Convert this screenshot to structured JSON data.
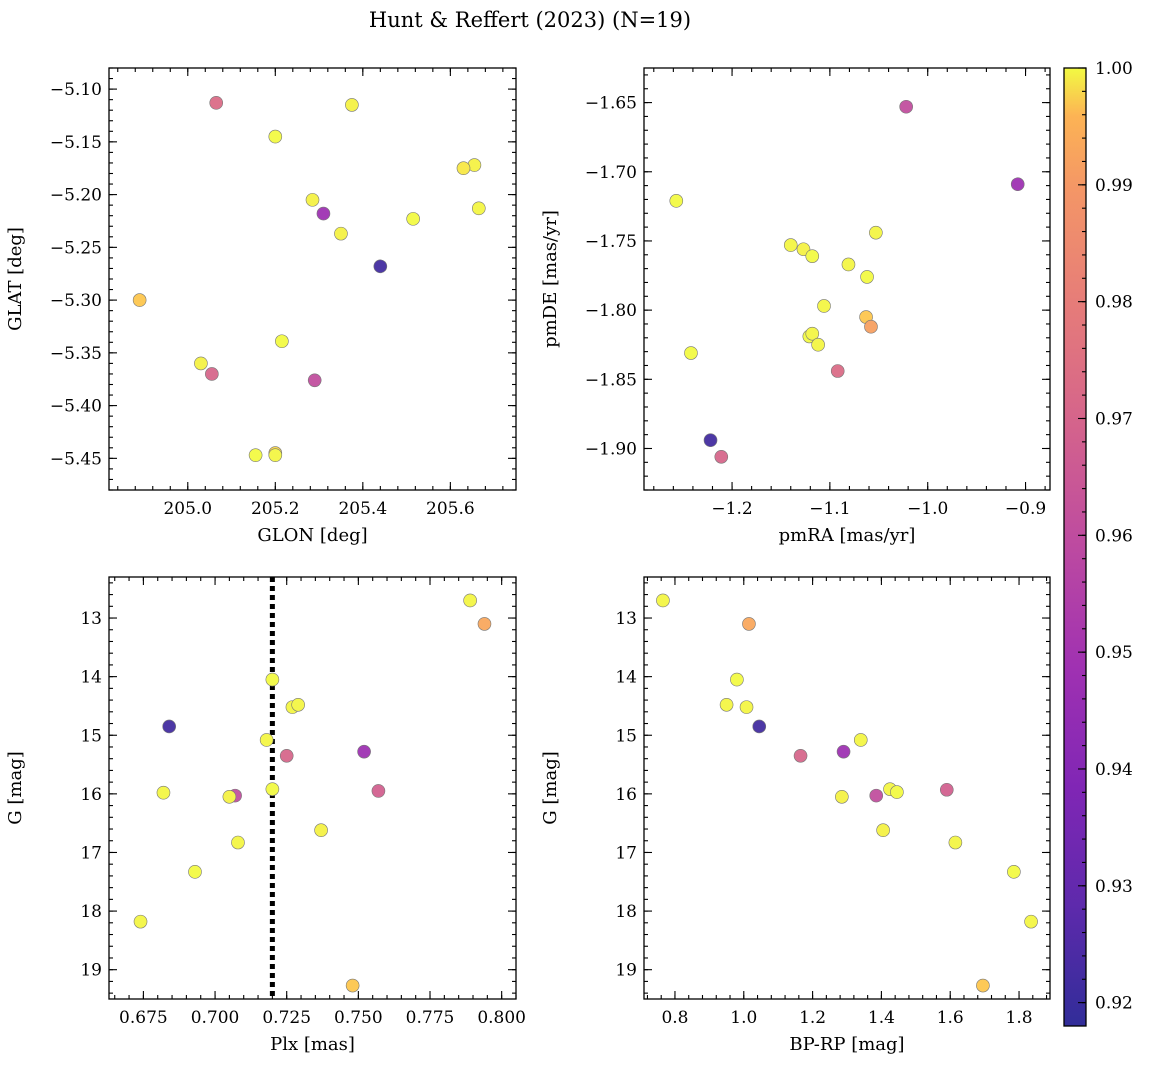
{
  "figure_title": "Hunt & Reffert (2023) (N=19)",
  "colorbar": {
    "min": 0.918,
    "max": 1.0,
    "ticks": [
      0.92,
      0.93,
      0.94,
      0.95,
      0.96,
      0.97,
      0.98,
      0.99,
      1.0
    ],
    "tick_labels": [
      "0.92",
      "0.93",
      "0.94",
      "0.95",
      "0.96",
      "0.97",
      "0.98",
      "0.99",
      "1.00"
    ],
    "colormap": "plasma"
  },
  "chart_data": [
    {
      "type": "scatter",
      "name": "glon-glat",
      "xlabel": "GLON [deg]",
      "ylabel": "GLAT [deg]",
      "xlim": [
        204.82,
        205.75
      ],
      "ylim": [
        -5.48,
        -5.08
      ],
      "y_inverted": false,
      "xticks": [
        205.0,
        205.2,
        205.4,
        205.6
      ],
      "xtick_labels": [
        "205.0",
        "205.2",
        "205.4",
        "205.6"
      ],
      "yticks": [
        -5.1,
        -5.15,
        -5.2,
        -5.25,
        -5.3,
        -5.35,
        -5.4,
        -5.45
      ],
      "ytick_labels": [
        "−5.10",
        "−5.15",
        "−5.20",
        "−5.25",
        "−5.30",
        "−5.35",
        "−5.40",
        "−5.45"
      ],
      "x": [
        205.065,
        205.375,
        205.2,
        205.655,
        205.63,
        205.285,
        205.31,
        205.515,
        205.665,
        205.35,
        205.44,
        204.89,
        205.215,
        205.03,
        205.055,
        205.29,
        205.2,
        205.155,
        205.2
      ],
      "y": [
        -5.113,
        -5.115,
        -5.145,
        -5.172,
        -5.175,
        -5.205,
        -5.218,
        -5.223,
        -5.213,
        -5.237,
        -5.268,
        -5.3,
        -5.339,
        -5.36,
        -5.37,
        -5.376,
        -5.445,
        -5.447,
        -5.447
      ],
      "c": [
        0.962,
        0.998,
        1.0,
        0.998,
        0.996,
        0.998,
        0.942,
        1.0,
        0.999,
        0.998,
        0.921,
        0.988,
        1.0,
        0.998,
        0.96,
        0.952,
        0.992,
        1.0,
        0.999
      ]
    },
    {
      "type": "scatter",
      "name": "pmra-pmde",
      "xlabel": "pmRA [mas/yr]",
      "ylabel": "pmDE [mas/yr]",
      "xlim": [
        -1.29,
        -0.875
      ],
      "ylim": [
        -1.93,
        -1.625
      ],
      "y_inverted": false,
      "xticks": [
        -1.2,
        -1.1,
        -1.0,
        -0.9
      ],
      "xtick_labels": [
        "−1.2",
        "−1.1",
        "−1.0",
        "−0.9"
      ],
      "yticks": [
        -1.65,
        -1.7,
        -1.75,
        -1.8,
        -1.85,
        -1.9
      ],
      "ytick_labels": [
        "−1.65",
        "−1.70",
        "−1.75",
        "−1.80",
        "−1.85",
        "−1.90"
      ],
      "x": [
        -1.022,
        -0.908,
        -1.257,
        -1.14,
        -1.127,
        -1.118,
        -1.053,
        -1.081,
        -1.062,
        -1.106,
        -1.063,
        -1.058,
        -1.121,
        -1.118,
        -1.112,
        -1.242,
        -1.092,
        -1.222,
        -1.211
      ],
      "y": [
        -1.653,
        -1.709,
        -1.721,
        -1.753,
        -1.756,
        -1.761,
        -1.744,
        -1.767,
        -1.776,
        -1.797,
        -1.805,
        -1.812,
        -1.819,
        -1.817,
        -1.825,
        -1.831,
        -1.844,
        -1.894,
        -1.906
      ],
      "c": [
        0.952,
        0.942,
        1.0,
        0.999,
        0.998,
        1.0,
        0.999,
        0.999,
        1.0,
        0.999,
        0.988,
        0.978,
        1.0,
        0.999,
        0.999,
        1.0,
        0.962,
        0.921,
        0.96
      ]
    },
    {
      "type": "scatter",
      "name": "plx-g",
      "xlabel": "Plx [mas]",
      "ylabel": "G [mag]",
      "xlim": [
        0.663,
        0.805
      ],
      "ylim": [
        12.3,
        19.5
      ],
      "y_inverted": true,
      "xticks": [
        0.675,
        0.7,
        0.725,
        0.75,
        0.775,
        0.8
      ],
      "xtick_labels": [
        "0.675",
        "0.700",
        "0.725",
        "0.750",
        "0.775",
        "0.800"
      ],
      "yticks": [
        13,
        14,
        15,
        16,
        17,
        18,
        19
      ],
      "ytick_labels": [
        "13",
        "14",
        "15",
        "16",
        "17",
        "18",
        "19"
      ],
      "vline": 0.72,
      "x": [
        0.789,
        0.794,
        0.72,
        0.727,
        0.729,
        0.684,
        0.752,
        0.718,
        0.725,
        0.682,
        0.707,
        0.705,
        0.757,
        0.72,
        0.737,
        0.708,
        0.693,
        0.674,
        0.748
      ],
      "y": [
        12.7,
        13.1,
        14.05,
        14.52,
        14.48,
        14.85,
        15.28,
        15.08,
        15.35,
        15.98,
        16.03,
        16.05,
        15.95,
        15.92,
        16.62,
        16.83,
        17.33,
        18.18,
        19.27
      ],
      "c": [
        0.999,
        0.98,
        1.0,
        0.999,
        0.999,
        0.921,
        0.942,
        0.999,
        0.96,
        0.999,
        0.952,
        0.998,
        0.958,
        1.0,
        0.998,
        0.999,
        1.0,
        0.999,
        0.988
      ]
    },
    {
      "type": "scatter",
      "name": "bprp-g",
      "xlabel": "BP-RP [mag]",
      "ylabel": "G [mag]",
      "xlim": [
        0.71,
        1.89
      ],
      "ylim": [
        12.3,
        19.5
      ],
      "y_inverted": true,
      "xticks": [
        0.8,
        1.0,
        1.2,
        1.4,
        1.6,
        1.8
      ],
      "xtick_labels": [
        "0.8",
        "1.0",
        "1.2",
        "1.4",
        "1.6",
        "1.8"
      ],
      "yticks": [
        13,
        14,
        15,
        16,
        17,
        18,
        19
      ],
      "ytick_labels": [
        "13",
        "14",
        "15",
        "16",
        "17",
        "18",
        "19"
      ],
      "x": [
        0.765,
        1.015,
        0.98,
        0.95,
        1.008,
        1.045,
        1.29,
        1.34,
        1.165,
        1.59,
        1.385,
        1.285,
        1.425,
        1.445,
        1.405,
        1.615,
        1.785,
        1.835,
        1.695
      ],
      "y": [
        12.7,
        13.1,
        14.05,
        14.48,
        14.52,
        14.85,
        15.28,
        15.08,
        15.35,
        15.93,
        16.03,
        16.05,
        15.92,
        15.97,
        16.62,
        16.83,
        17.33,
        18.18,
        19.27
      ],
      "c": [
        0.999,
        0.98,
        1.0,
        0.999,
        0.999,
        0.921,
        0.942,
        0.999,
        0.96,
        0.958,
        0.952,
        0.998,
        0.999,
        1.0,
        0.998,
        0.999,
        1.0,
        0.999,
        0.988
      ]
    }
  ]
}
